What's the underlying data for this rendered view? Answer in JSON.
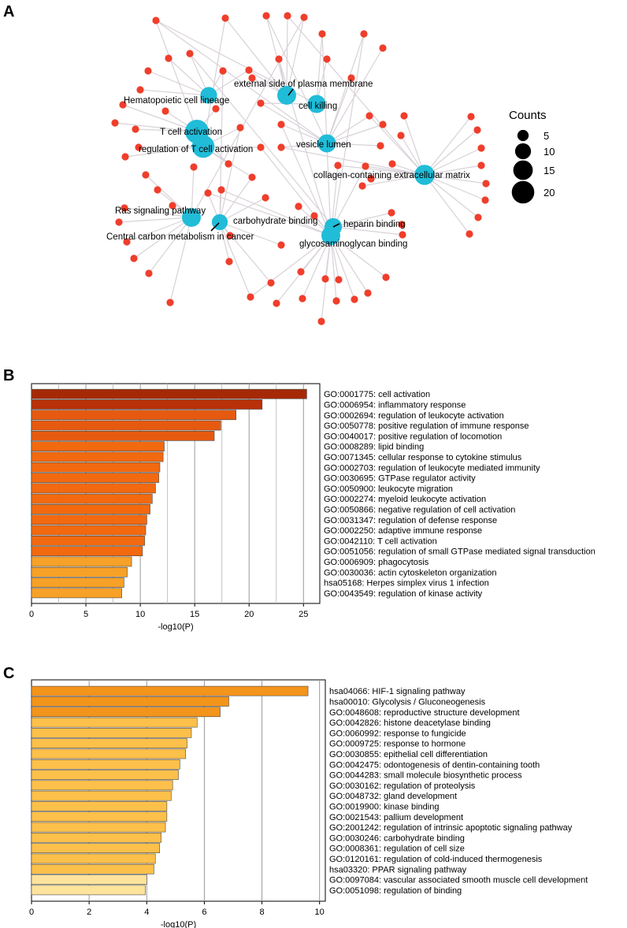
{
  "figure": {
    "panel_labels": [
      "A",
      "B",
      "C"
    ]
  },
  "chart_data": [
    {
      "type": "network",
      "panel": "A",
      "legend": {
        "title": "Counts",
        "sizes": [
          5,
          10,
          15,
          20
        ]
      },
      "colors": {
        "term_node": "#20bcd8",
        "gene_node": "#ef3e2b",
        "edge": "#d8d2d8"
      },
      "terms": [
        {
          "label": "external side of plasma membrane",
          "count": 14
        },
        {
          "label": "Hematopoietic cell lineage",
          "count": 11
        },
        {
          "label": "cell killing",
          "count": 13
        },
        {
          "label": "T cell activation",
          "count": 22
        },
        {
          "label": "regulation of T cell activation",
          "count": 20
        },
        {
          "label": "vesicle lumen",
          "count": 13
        },
        {
          "label": "collagen-containing extracellular matrix",
          "count": 16
        },
        {
          "label": "Ras signaling pathway",
          "count": 14
        },
        {
          "label": "carbohydrate binding",
          "count": 10
        },
        {
          "label": "Central carbon metabolism in cancer",
          "count": 9
        },
        {
          "label": "heparin binding",
          "count": 12
        },
        {
          "label": "glycosaminoglycan binding",
          "count": 14
        }
      ]
    },
    {
      "type": "bar",
      "orientation": "horizontal",
      "panel": "B",
      "xlabel": "-log10(P)",
      "xlim": [
        0,
        26.5
      ],
      "xticks": [
        0,
        5,
        10,
        15,
        20,
        25
      ],
      "grid": true,
      "categories": [
        "GO:0001775: cell activation",
        "GO:0006954: inflammatory response",
        "GO:0002694: regulation of leukocyte activation",
        "GO:0050778: positive regulation of immune response",
        "GO:0040017: positive regulation of locomotion",
        "GO:0008289: lipid binding",
        "GO:0071345: cellular response to cytokine stimulus",
        "GO:0002703: regulation of leukocyte mediated immunity",
        "GO:0030695: GTPase regulator activity",
        "GO:0050900: leukocyte migration",
        "GO:0002274: myeloid leukocyte activation",
        "GO:0050866: negative regulation of cell activation",
        "GO:0031347: regulation of defense response",
        "GO:0002250: adaptive immune response",
        "GO:0042110: T cell activation",
        "GO:0051056: regulation of small GTPase mediated signal transduction",
        "GO:0006909: phagocytosis",
        "GO:0030036: actin cytoskeleton organization",
        "hsa05168: Herpes simplex virus 1 infection",
        "GO:0043549: regulation of kinase activity"
      ],
      "values": [
        25.3,
        21.2,
        18.8,
        17.4,
        16.8,
        12.2,
        12.1,
        11.8,
        11.7,
        11.4,
        11.1,
        10.9,
        10.6,
        10.5,
        10.4,
        10.2,
        9.2,
        8.8,
        8.5,
        8.3
      ],
      "colors": [
        "#a62906",
        "#b83108",
        "#e65a10",
        "#e65a10",
        "#e65a10",
        "#f2690f",
        "#f2690f",
        "#f2690f",
        "#f2690f",
        "#f2690f",
        "#f2690f",
        "#f2690f",
        "#f2690f",
        "#f2690f",
        "#f2690f",
        "#f2690f",
        "#f7a128",
        "#f7a128",
        "#f7a128",
        "#f7a128"
      ]
    },
    {
      "type": "bar",
      "orientation": "horizontal",
      "panel": "C",
      "xlabel": "-log10(P)",
      "xlim": [
        0,
        10.2
      ],
      "xticks": [
        0,
        2,
        4,
        6,
        8,
        10
      ],
      "grid": true,
      "categories": [
        "hsa04066: HIF-1 signaling pathway",
        "hsa00010: Glycolysis / Gluconeogenesis",
        "GO:0048608: reproductive structure development",
        "GO:0042826: histone deacetylase binding",
        "GO:0060992: response to fungicide",
        "GO:0009725: response to hormone",
        "GO:0030855: epithelial cell differentiation",
        "GO:0042475: odontogenesis of dentin-containing tooth",
        "GO:0044283: small molecule biosynthetic process",
        "GO:0030162: regulation of proteolysis",
        "GO:0048732: gland development",
        "GO:0019900: kinase binding",
        "GO:0021543: pallium development",
        "GO:2001242: regulation of intrinsic apoptotic signaling pathway",
        "GO:0030246: carbohydrate binding",
        "GO:0008361: regulation of cell size",
        "GO:0120161: regulation of cold-induced thermogenesis",
        "hsa03320: PPAR signaling pathway",
        "GO:0097084: vascular associated smooth muscle cell development",
        "GO:0051098: regulation of binding"
      ],
      "values": [
        9.6,
        6.85,
        6.55,
        5.75,
        5.55,
        5.4,
        5.35,
        5.15,
        5.1,
        4.9,
        4.85,
        4.7,
        4.7,
        4.65,
        4.5,
        4.45,
        4.3,
        4.25,
        4.0,
        3.95
      ],
      "colors": [
        "#f3941b",
        "#f3941b",
        "#f3941b",
        "#fdc04a",
        "#fdc04a",
        "#fdc04a",
        "#fdc04a",
        "#fdc04a",
        "#fdc04a",
        "#fdc04a",
        "#fdc04a",
        "#fdc04a",
        "#fdc04a",
        "#fdc04a",
        "#fdc04a",
        "#fdc04a",
        "#fdc04a",
        "#fdc04a",
        "#fde39c",
        "#fde39c"
      ]
    }
  ]
}
